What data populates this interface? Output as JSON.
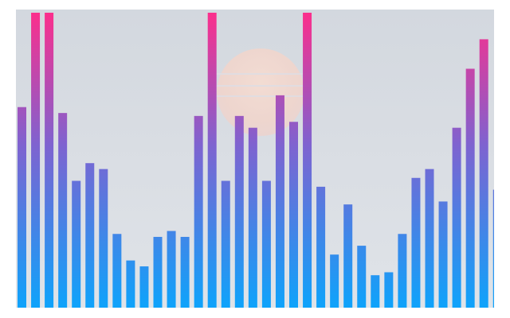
{
  "chart_data": {
    "type": "bar",
    "title": "",
    "xlabel": "",
    "ylabel": "",
    "ylim": [
      0,
      100
    ],
    "grid": false,
    "values": [
      68,
      100,
      100,
      66,
      43,
      49,
      47,
      25,
      16,
      14,
      24,
      26,
      24,
      65,
      100,
      43,
      65,
      61,
      43,
      72,
      63,
      100,
      41,
      18,
      35,
      21,
      11,
      12,
      25,
      44,
      47,
      36,
      61,
      81,
      91,
      40
    ],
    "colors": {
      "bottom": "#0ea3fb",
      "middle": "#7e63d0",
      "top": "#fb2f8c"
    }
  }
}
